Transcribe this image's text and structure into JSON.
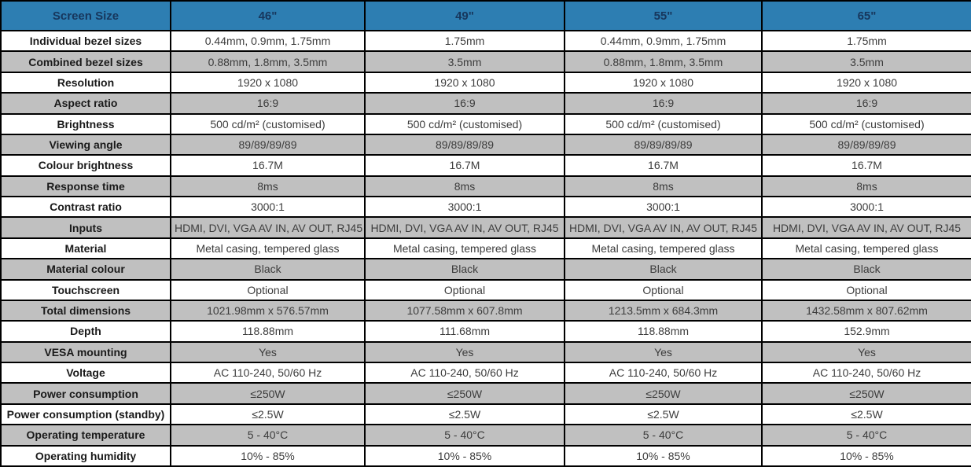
{
  "table": {
    "colors": {
      "header_bg": "#2d7eb2",
      "header_text": "#17375d",
      "row_alt_bg": "#c0c0c0",
      "row_bg": "#ffffff",
      "border": "#000000"
    },
    "header": {
      "label": "Screen Size",
      "columns": [
        "46\"",
        "49\"",
        "55\"",
        "65\""
      ]
    },
    "rows": [
      {
        "label": "Individual bezel sizes",
        "values": [
          "0.44mm, 0.9mm, 1.75mm",
          "1.75mm",
          "0.44mm, 0.9mm, 1.75mm",
          "1.75mm"
        ]
      },
      {
        "label": "Combined bezel sizes",
        "values": [
          "0.88mm, 1.8mm, 3.5mm",
          "3.5mm",
          "0.88mm, 1.8mm, 3.5mm",
          "3.5mm"
        ]
      },
      {
        "label": "Resolution",
        "values": [
          "1920 x 1080",
          "1920 x 1080",
          "1920 x 1080",
          "1920 x 1080"
        ]
      },
      {
        "label": "Aspect ratio",
        "values": [
          "16:9",
          "16:9",
          "16:9",
          "16:9"
        ]
      },
      {
        "label": "Brightness",
        "values": [
          "500 cd/m² (customised)",
          "500 cd/m² (customised)",
          "500 cd/m² (customised)",
          "500 cd/m² (customised)"
        ]
      },
      {
        "label": "Viewing angle",
        "values": [
          "89/89/89/89",
          "89/89/89/89",
          "89/89/89/89",
          "89/89/89/89"
        ]
      },
      {
        "label": "Colour brightness",
        "values": [
          "16.7M",
          "16.7M",
          "16.7M",
          "16.7M"
        ]
      },
      {
        "label": "Response time",
        "values": [
          "8ms",
          "8ms",
          "8ms",
          "8ms"
        ]
      },
      {
        "label": "Contrast ratio",
        "values": [
          "3000:1",
          "3000:1",
          "3000:1",
          "3000:1"
        ]
      },
      {
        "label": "Inputs",
        "values": [
          "HDMI, DVI, VGA AV IN, AV OUT, RJ45",
          "HDMI, DVI, VGA AV IN, AV OUT, RJ45",
          "HDMI, DVI, VGA AV IN, AV OUT, RJ45",
          "HDMI, DVI, VGA AV IN, AV OUT, RJ45"
        ]
      },
      {
        "label": "Material",
        "values": [
          "Metal casing, tempered glass",
          "Metal casing, tempered glass",
          "Metal casing, tempered glass",
          "Metal casing, tempered glass"
        ]
      },
      {
        "label": "Material colour",
        "values": [
          "Black",
          "Black",
          "Black",
          "Black"
        ]
      },
      {
        "label": "Touchscreen",
        "values": [
          "Optional",
          "Optional",
          "Optional",
          "Optional"
        ]
      },
      {
        "label": "Total dimensions",
        "values": [
          "1021.98mm x 576.57mm",
          "1077.58mm x 607.8mm",
          "1213.5mm x 684.3mm",
          "1432.58mm x 807.62mm"
        ]
      },
      {
        "label": "Depth",
        "values": [
          "118.88mm",
          "111.68mm",
          "118.88mm",
          "152.9mm"
        ]
      },
      {
        "label": "VESA mounting",
        "values": [
          "Yes",
          "Yes",
          "Yes",
          "Yes"
        ]
      },
      {
        "label": "Voltage",
        "values": [
          "AC 110-240, 50/60 Hz",
          "AC 110-240, 50/60 Hz",
          "AC 110-240, 50/60 Hz",
          "AC 110-240, 50/60 Hz"
        ]
      },
      {
        "label": "Power consumption",
        "values": [
          "≤250W",
          "≤250W",
          "≤250W",
          "≤250W"
        ]
      },
      {
        "label": "Power consumption (standby)",
        "values": [
          "≤2.5W",
          "≤2.5W",
          "≤2.5W",
          "≤2.5W"
        ]
      },
      {
        "label": "Operating temperature",
        "values": [
          "5 - 40°C",
          "5 - 40°C",
          "5 - 40°C",
          "5 - 40°C"
        ]
      },
      {
        "label": "Operating humidity",
        "values": [
          "10% - 85%",
          "10% - 85%",
          "10% - 85%",
          "10% - 85%"
        ]
      }
    ]
  }
}
